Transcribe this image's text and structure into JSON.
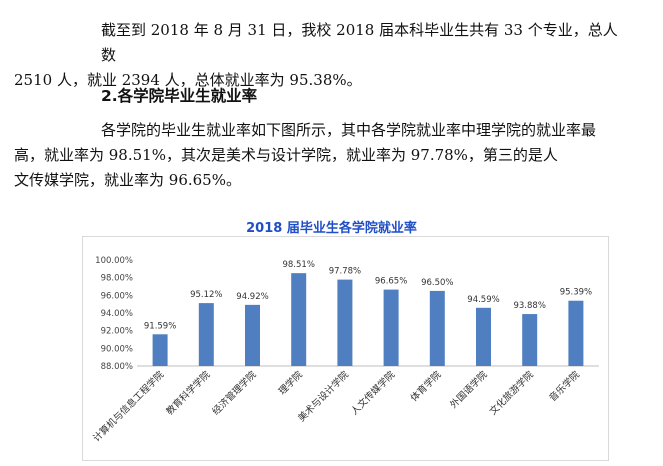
{
  "paragraph1": {
    "line1": "截至到 2018 年 8 月 31 日，我校 2018 届本科毕业生共有 33 个专业，总人数",
    "line2": "2510 人，就业 2394 人，总体就业率为 95.38%。"
  },
  "section_heading": "2.各学院毕业生就业率",
  "paragraph2": {
    "line1": "各学院的毕业生就业率如下图所示，其中各学院就业率中理学院的就业率最",
    "line2": "高，就业率为 98.51%，其次是美术与设计学院，就业率为 97.78%，第三的是人",
    "line3": "文传媒学院，就业率为 96.65%。"
  },
  "chart_data": {
    "type": "bar",
    "title": "2018 届毕业生各学院就业率",
    "categories": [
      "计算机与信息工程学院",
      "教育科学学院",
      "经济管理学院",
      "理学院",
      "美术与设计学院",
      "人文传媒学院",
      "体育学院",
      "外国语学院",
      "文化旅游学院",
      "音乐学院"
    ],
    "values": [
      91.59,
      95.12,
      94.92,
      98.51,
      97.78,
      96.65,
      96.5,
      94.59,
      93.88,
      95.39
    ],
    "data_labels": [
      "91.59%",
      "95.12%",
      "94.92%",
      "98.51%",
      "97.78%",
      "96.65%",
      "96.50%",
      "94.59%",
      "93.88%",
      "95.39%"
    ],
    "yticks": [
      "88.00%",
      "90.00%",
      "92.00%",
      "94.00%",
      "96.00%",
      "98.00%",
      "100.00%"
    ],
    "ylim": [
      88,
      100
    ],
    "grid": false,
    "bar_color": "#4f7fc0",
    "title_color": "#1f4ec7"
  }
}
